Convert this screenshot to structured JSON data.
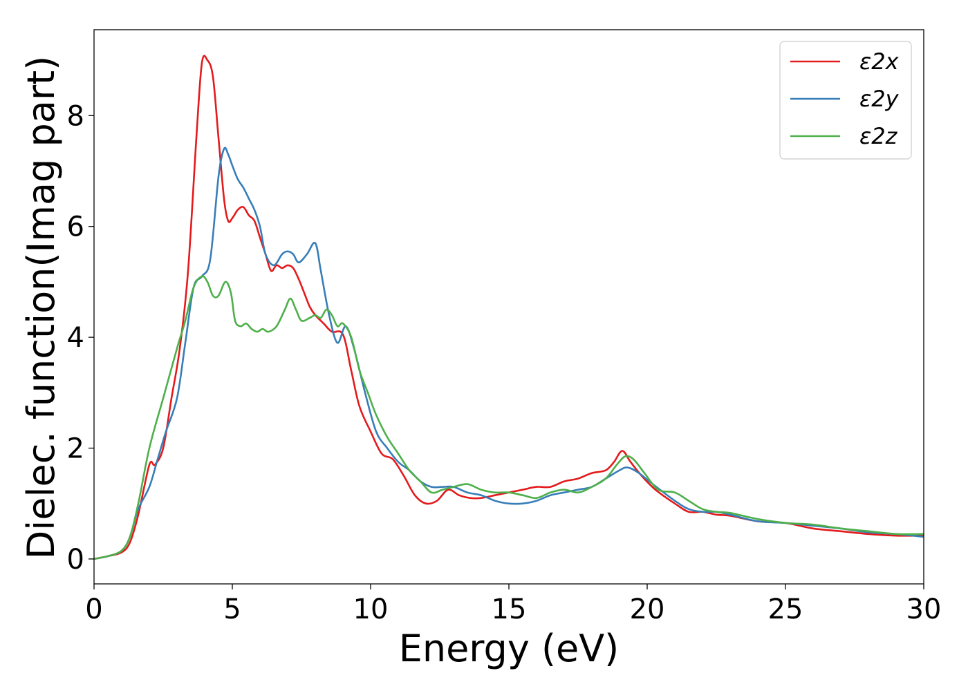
{
  "chart_data": {
    "type": "line",
    "title": "",
    "xlabel": "Energy (eV)",
    "ylabel": "Dielec. function(Imag part)",
    "xlim": [
      0,
      30
    ],
    "ylim": [
      -0.45,
      9.55
    ],
    "xticks": [
      0,
      5,
      10,
      15,
      20,
      25,
      30
    ],
    "yticks": [
      0,
      2,
      4,
      6,
      8
    ],
    "grid": false,
    "legend_position": "top-right",
    "series": [
      {
        "name": "ε2x",
        "color": "#e41a1c",
        "x": [
          0,
          0.5,
          1.0,
          1.3,
          1.6,
          2.0,
          2.2,
          2.5,
          2.8,
          3.1,
          3.4,
          3.7,
          3.9,
          4.1,
          4.3,
          4.5,
          4.7,
          4.85,
          5.0,
          5.2,
          5.4,
          5.6,
          5.8,
          6.0,
          6.2,
          6.4,
          6.6,
          6.8,
          7.0,
          7.2,
          7.4,
          7.6,
          7.8,
          8.0,
          8.3,
          8.6,
          9.0,
          9.3,
          9.6,
          10.0,
          10.4,
          10.8,
          11.2,
          11.6,
          12.0,
          12.4,
          12.8,
          13.2,
          13.6,
          14.0,
          14.5,
          15.0,
          15.5,
          16.0,
          16.5,
          17.0,
          17.5,
          18.0,
          18.5,
          18.8,
          19.1,
          19.4,
          19.8,
          20.3,
          21.0,
          21.5,
          22.0,
          22.5,
          23.0,
          24.0,
          25.0,
          26.0,
          27.0,
          28.0,
          29.0,
          30.0
        ],
        "values": [
          0.0,
          0.05,
          0.12,
          0.3,
          0.8,
          1.7,
          1.7,
          2.0,
          2.9,
          3.8,
          5.2,
          7.6,
          8.95,
          9.0,
          8.7,
          7.6,
          6.5,
          6.1,
          6.15,
          6.3,
          6.35,
          6.2,
          6.1,
          5.8,
          5.5,
          5.2,
          5.3,
          5.25,
          5.3,
          5.25,
          5.05,
          4.8,
          4.55,
          4.4,
          4.25,
          4.1,
          4.05,
          3.4,
          2.75,
          2.3,
          1.9,
          1.8,
          1.5,
          1.15,
          1.0,
          1.05,
          1.25,
          1.15,
          1.1,
          1.1,
          1.15,
          1.2,
          1.25,
          1.3,
          1.3,
          1.4,
          1.45,
          1.55,
          1.6,
          1.75,
          1.95,
          1.75,
          1.5,
          1.25,
          1.0,
          0.85,
          0.85,
          0.8,
          0.78,
          0.68,
          0.65,
          0.55,
          0.5,
          0.45,
          0.42,
          0.42
        ]
      },
      {
        "name": "ε2y",
        "color": "#377eb8",
        "x": [
          0,
          0.5,
          1.0,
          1.3,
          1.6,
          2.0,
          2.3,
          2.6,
          3.0,
          3.3,
          3.6,
          3.9,
          4.2,
          4.5,
          4.7,
          4.85,
          5.0,
          5.2,
          5.4,
          5.6,
          5.8,
          6.0,
          6.2,
          6.5,
          6.8,
          7.0,
          7.2,
          7.4,
          7.7,
          8.0,
          8.2,
          8.5,
          8.8,
          9.1,
          9.4,
          9.8,
          10.2,
          10.6,
          11.0,
          11.4,
          11.8,
          12.2,
          12.6,
          13.0,
          13.5,
          14.0,
          14.5,
          15.0,
          15.5,
          16.0,
          16.5,
          17.0,
          17.5,
          18.0,
          18.5,
          19.0,
          19.3,
          19.7,
          20.2,
          21.0,
          21.5,
          22.0,
          22.5,
          23.0,
          24.0,
          25.0,
          26.0,
          27.0,
          28.0,
          29.0,
          30.0
        ],
        "values": [
          0.0,
          0.05,
          0.15,
          0.4,
          0.9,
          1.3,
          1.8,
          2.3,
          2.9,
          3.9,
          4.9,
          5.1,
          5.4,
          6.9,
          7.4,
          7.3,
          7.1,
          6.85,
          6.7,
          6.5,
          6.3,
          6.0,
          5.5,
          5.3,
          5.5,
          5.55,
          5.5,
          5.35,
          5.5,
          5.7,
          5.2,
          4.4,
          3.9,
          4.2,
          3.8,
          3.0,
          2.3,
          2.0,
          1.75,
          1.6,
          1.4,
          1.3,
          1.3,
          1.3,
          1.2,
          1.15,
          1.05,
          1.0,
          1.0,
          1.05,
          1.15,
          1.2,
          1.25,
          1.3,
          1.45,
          1.6,
          1.65,
          1.55,
          1.35,
          1.05,
          0.9,
          0.85,
          0.85,
          0.8,
          0.68,
          0.65,
          0.6,
          0.55,
          0.48,
          0.45,
          0.4
        ]
      },
      {
        "name": "ε2z",
        "color": "#4daf4a",
        "x": [
          0,
          0.5,
          1.0,
          1.3,
          1.6,
          2.0,
          2.5,
          3.0,
          3.3,
          3.6,
          3.9,
          4.1,
          4.3,
          4.5,
          4.75,
          4.95,
          5.1,
          5.3,
          5.5,
          5.7,
          5.9,
          6.1,
          6.3,
          6.6,
          6.9,
          7.1,
          7.3,
          7.5,
          7.8,
          8.0,
          8.2,
          8.4,
          8.6,
          8.8,
          9.0,
          9.3,
          9.6,
          9.9,
          10.2,
          10.6,
          11.0,
          11.4,
          11.8,
          12.2,
          12.6,
          13.0,
          13.5,
          14.0,
          14.5,
          15.0,
          15.5,
          16.0,
          16.5,
          17.0,
          17.5,
          18.0,
          18.5,
          18.9,
          19.2,
          19.5,
          19.9,
          20.4,
          21.0,
          21.5,
          22.0,
          22.5,
          23.0,
          24.0,
          25.0,
          26.0,
          27.0,
          28.0,
          29.0,
          30.0
        ],
        "values": [
          0.0,
          0.05,
          0.15,
          0.4,
          1.0,
          2.0,
          2.9,
          3.8,
          4.3,
          4.9,
          5.1,
          5.0,
          4.75,
          4.75,
          5.0,
          4.8,
          4.3,
          4.2,
          4.25,
          4.15,
          4.1,
          4.15,
          4.1,
          4.2,
          4.5,
          4.7,
          4.5,
          4.3,
          4.35,
          4.4,
          4.35,
          4.5,
          4.4,
          4.2,
          4.25,
          4.0,
          3.4,
          3.0,
          2.6,
          2.2,
          1.9,
          1.6,
          1.4,
          1.2,
          1.25,
          1.3,
          1.35,
          1.25,
          1.2,
          1.2,
          1.15,
          1.1,
          1.2,
          1.25,
          1.2,
          1.3,
          1.45,
          1.7,
          1.85,
          1.8,
          1.55,
          1.25,
          1.2,
          1.05,
          0.9,
          0.85,
          0.83,
          0.72,
          0.65,
          0.62,
          0.55,
          0.5,
          0.45,
          0.45
        ]
      }
    ]
  }
}
